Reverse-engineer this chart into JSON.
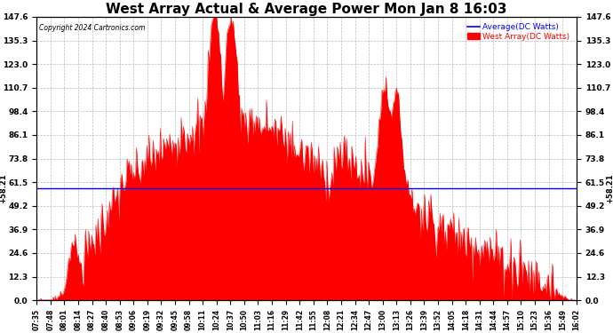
{
  "title": "West Array Actual & Average Power Mon Jan 8 16:03",
  "copyright": "Copyright 2024 Cartronics.com",
  "legend_avg_label": "Average(DC Watts)",
  "legend_west_label": "West Array(DC Watts)",
  "legend_avg_color": "#0000ff",
  "legend_west_color": "#ff0000",
  "avg_line_value": 58.21,
  "avg_line_color": "#0000ff",
  "ymin": 0.0,
  "ymax": 147.6,
  "yticks": [
    0.0,
    12.3,
    24.6,
    36.9,
    49.2,
    61.5,
    73.8,
    86.1,
    98.4,
    110.7,
    123.0,
    135.3,
    147.6
  ],
  "ytick_labels": [
    "0.0",
    "12.3",
    "24.6",
    "36.9",
    "49.2",
    "61.5",
    "73.8",
    "86.1",
    "98.4",
    "110.7",
    "123.0",
    "135.3",
    "147.6"
  ],
  "background_color": "#ffffff",
  "plot_bg_color": "#ffffff",
  "grid_color": "#aaaaaa",
  "fill_color": "#ff0000",
  "fill_alpha": 1.0,
  "title_fontsize": 11,
  "xtick_labels": [
    "07:35",
    "07:48",
    "08:01",
    "08:14",
    "08:27",
    "08:40",
    "08:53",
    "09:06",
    "09:19",
    "09:32",
    "09:45",
    "09:58",
    "10:11",
    "10:24",
    "10:37",
    "10:50",
    "11:03",
    "11:16",
    "11:29",
    "11:42",
    "11:55",
    "12:08",
    "12:21",
    "12:34",
    "12:47",
    "13:00",
    "13:13",
    "13:26",
    "13:39",
    "13:52",
    "14:05",
    "14:18",
    "14:31",
    "14:44",
    "14:57",
    "15:10",
    "15:23",
    "15:36",
    "15:49",
    "16:02"
  ]
}
